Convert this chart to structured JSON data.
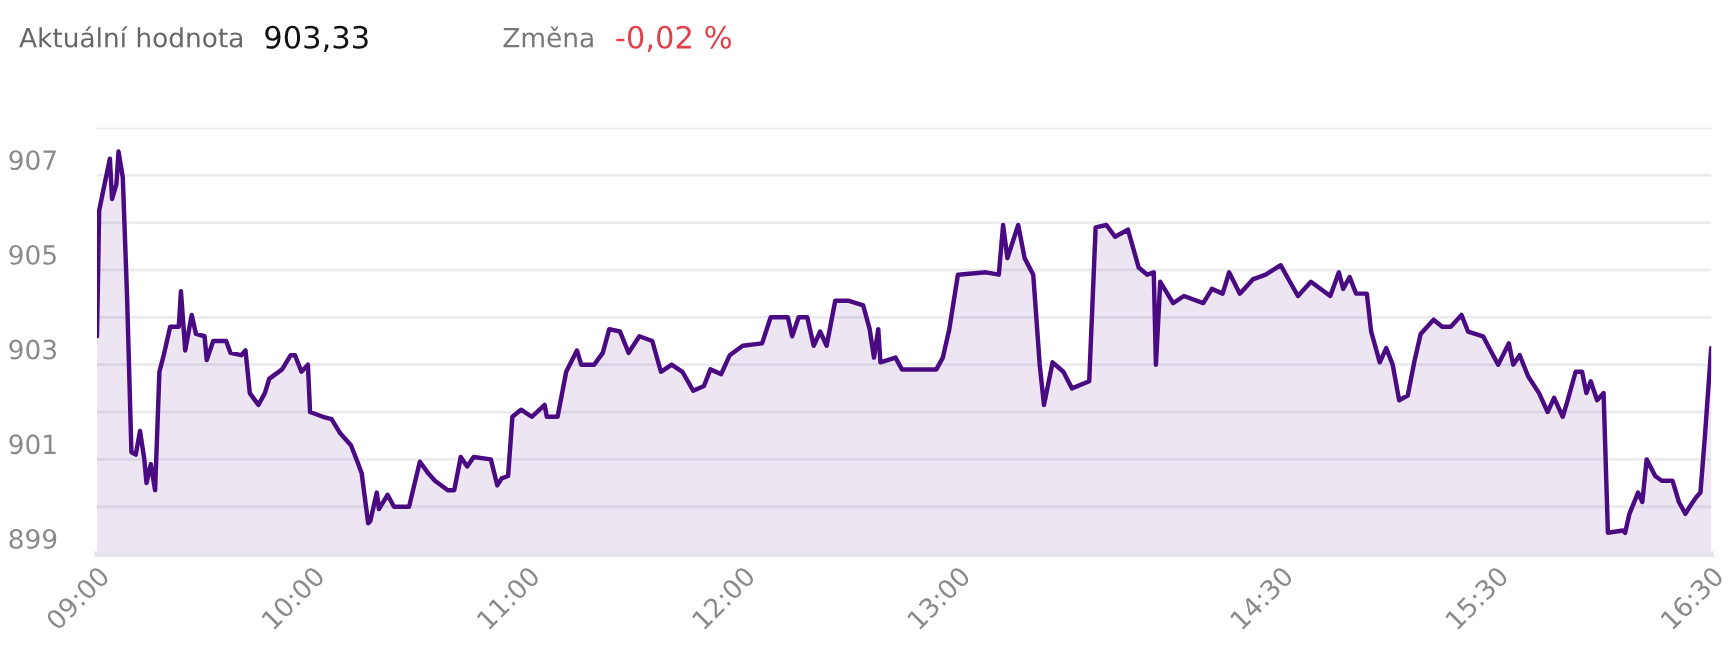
{
  "chart_data": {
    "type": "area",
    "annotations": [
      "Aktuální hodnota",
      "903,33",
      "Změna",
      "-0,02 %"
    ],
    "xlim": [
      9,
      16.5
    ],
    "ylim": [
      899,
      908
    ],
    "xticks": [
      {
        "value": 9,
        "label": "09:00"
      },
      {
        "value": 10,
        "label": "10:00"
      },
      {
        "value": 11,
        "label": "11:00"
      },
      {
        "value": 12,
        "label": "12:00"
      },
      {
        "value": 13,
        "label": "13:00"
      },
      {
        "value": 14.5,
        "label": "14:30"
      },
      {
        "value": 15.5,
        "label": "15:30"
      },
      {
        "value": 16.5,
        "label": "16:30"
      }
    ],
    "yticks": [
      899,
      {
        "value": 900,
        "label": null
      },
      901,
      {
        "value": 902,
        "label": null
      },
      903,
      {
        "value": 904,
        "label": null
      },
      905,
      {
        "value": 906,
        "label": null
      },
      907,
      {
        "value": 908,
        "label": null
      }
    ],
    "grid": "y",
    "legend": false,
    "marker": "none",
    "line_style": "solid",
    "series": [
      {
        "color": "#4a0a82",
        "x": [
          9.0,
          9.01,
          9.03,
          9.06,
          9.07,
          9.09,
          9.1,
          9.12,
          9.14,
          9.16,
          9.18,
          9.2,
          9.22,
          9.23,
          9.25,
          9.27,
          9.29,
          9.31,
          9.34,
          9.38,
          9.39,
          9.41,
          9.44,
          9.46,
          9.5,
          9.51,
          9.54,
          9.6,
          9.62,
          9.67,
          9.69,
          9.71,
          9.75,
          9.78,
          9.8,
          9.86,
          9.9,
          9.92,
          9.95,
          9.98,
          9.99,
          10.05,
          10.09,
          10.13,
          10.18,
          10.21,
          10.23,
          10.26,
          10.27,
          10.3,
          10.31,
          10.35,
          10.38,
          10.45,
          10.5,
          10.54,
          10.57,
          10.63,
          10.66,
          10.69,
          10.72,
          10.75,
          10.83,
          10.86,
          10.88,
          10.91,
          10.93,
          10.97,
          11.02,
          11.08,
          11.09,
          11.14,
          11.18,
          11.23,
          11.25,
          11.31,
          11.35,
          11.38,
          11.43,
          11.47,
          11.52,
          11.58,
          11.62,
          11.67,
          11.72,
          11.77,
          11.82,
          11.85,
          11.9,
          11.94,
          12.0,
          12.09,
          12.13,
          12.21,
          12.23,
          12.26,
          12.3,
          12.33,
          12.36,
          12.39,
          12.43,
          12.49,
          12.56,
          12.59,
          12.61,
          12.63,
          12.64,
          12.71,
          12.74,
          12.9,
          12.93,
          12.96,
          13.0,
          13.13,
          13.19,
          13.21,
          13.23,
          13.28,
          13.31,
          13.35,
          13.38,
          13.4,
          13.44,
          13.49,
          13.53,
          13.61,
          13.64,
          13.69,
          13.73,
          13.79,
          13.84,
          13.88,
          13.91,
          13.92,
          13.94,
          14.0,
          14.05,
          14.14,
          14.18,
          14.23,
          14.26,
          14.31,
          14.37,
          14.43,
          14.5,
          14.53,
          14.58,
          14.64,
          14.67,
          14.73,
          14.77,
          14.79,
          14.82,
          14.85,
          14.9,
          14.92,
          14.96,
          14.99,
          15.02,
          15.05,
          15.09,
          15.12,
          15.15,
          15.21,
          15.25,
          15.29,
          15.34,
          15.37,
          15.44,
          15.51,
          15.56,
          15.58,
          15.61,
          15.65,
          15.7,
          15.74,
          15.77,
          15.81,
          15.83,
          15.87,
          15.9,
          15.92,
          15.94,
          15.97,
          16.0,
          16.02,
          16.09,
          16.1,
          16.12,
          16.16,
          16.18,
          16.2,
          16.24,
          16.27,
          16.32,
          16.35,
          16.38,
          16.4,
          16.43,
          16.45,
          16.47,
          16.5
        ],
        "values": [
          903.6,
          906.25,
          906.7,
          907.35,
          906.5,
          906.8,
          907.5,
          906.95,
          904.4,
          901.15,
          901.1,
          901.6,
          901.0,
          900.5,
          900.9,
          900.35,
          902.85,
          903.2,
          903.8,
          903.8,
          904.55,
          903.3,
          904.05,
          903.65,
          903.6,
          903.1,
          903.5,
          903.5,
          903.25,
          903.2,
          903.3,
          902.4,
          902.15,
          902.4,
          902.7,
          902.9,
          903.2,
          903.2,
          902.85,
          903.0,
          902.0,
          901.9,
          901.85,
          901.55,
          901.3,
          900.95,
          900.7,
          899.65,
          899.7,
          900.3,
          899.95,
          900.25,
          900.0,
          900.0,
          900.95,
          900.7,
          900.55,
          900.35,
          900.35,
          901.05,
          900.85,
          901.05,
          901.0,
          900.45,
          900.6,
          900.65,
          901.9,
          902.05,
          901.9,
          902.15,
          901.9,
          901.9,
          902.85,
          903.3,
          903.0,
          903.0,
          903.25,
          903.75,
          903.7,
          903.25,
          903.6,
          903.5,
          902.85,
          903.0,
          902.85,
          902.45,
          902.55,
          902.9,
          902.8,
          903.2,
          903.4,
          903.45,
          904.0,
          904.0,
          903.6,
          904.0,
          904.0,
          903.4,
          903.7,
          903.4,
          904.35,
          904.35,
          904.25,
          903.75,
          903.15,
          903.75,
          903.05,
          903.15,
          902.9,
          902.9,
          903.15,
          903.75,
          904.9,
          904.95,
          904.9,
          905.95,
          905.25,
          905.95,
          905.25,
          904.9,
          903.0,
          902.15,
          903.05,
          902.85,
          902.5,
          902.65,
          905.9,
          905.95,
          905.7,
          905.85,
          905.05,
          904.9,
          904.95,
          903.0,
          904.75,
          904.3,
          904.45,
          904.3,
          904.6,
          904.5,
          904.95,
          904.5,
          904.8,
          904.9,
          905.1,
          904.85,
          904.45,
          904.75,
          904.65,
          904.45,
          904.95,
          904.6,
          904.85,
          904.5,
          904.5,
          903.7,
          903.05,
          903.35,
          903.0,
          902.25,
          902.35,
          903.05,
          903.65,
          903.95,
          903.8,
          903.8,
          904.05,
          903.7,
          903.6,
          903.0,
          903.45,
          903.0,
          903.2,
          902.75,
          902.4,
          902.0,
          902.3,
          901.9,
          902.2,
          902.85,
          902.85,
          902.4,
          902.65,
          902.25,
          902.4,
          899.45,
          899.5,
          899.45,
          899.85,
          900.3,
          900.1,
          901.0,
          900.65,
          900.55,
          900.55,
          900.1,
          899.85,
          900.0,
          900.2,
          900.3,
          901.45,
          903.35
        ]
      }
    ]
  }
}
